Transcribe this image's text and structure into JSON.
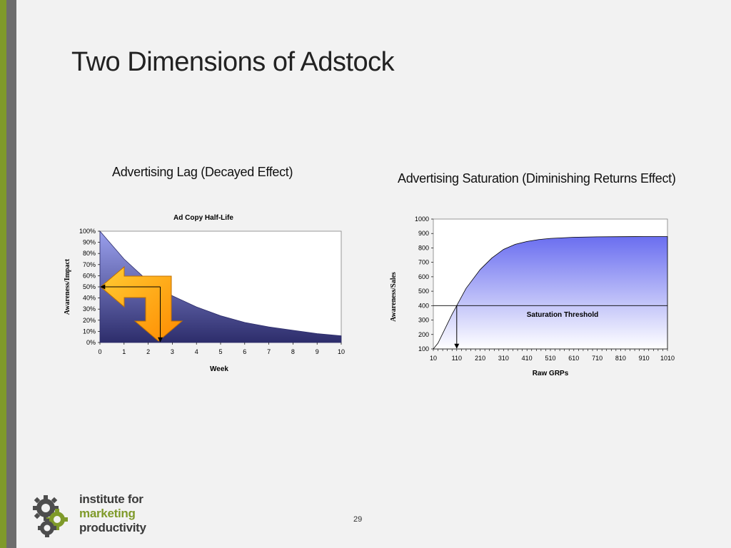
{
  "slide": {
    "title": "Two Dimensions of Adstock",
    "page_number": "29",
    "left_caption": "Advertising Lag (Decayed Effect)",
    "right_caption": "Advertising Saturation (Diminishing Returns Effect)"
  },
  "logo": {
    "line1": "institute for",
    "line2": "marketing",
    "line3": "productivity",
    "icon": "gears-icon",
    "colors": {
      "olive": "#7f9a2a",
      "gray": "#4d4d4d"
    }
  },
  "chart_data": [
    {
      "type": "area",
      "title": "Ad Copy Half-Life",
      "xlabel": "Week",
      "ylabel": "Awareness/Impact",
      "x": [
        0,
        1,
        2,
        3,
        4,
        5,
        6,
        7,
        8,
        9,
        10
      ],
      "values": [
        100,
        75,
        55,
        42,
        32,
        24,
        18,
        14,
        11,
        8,
        6
      ],
      "y_ticks": [
        "0%",
        "10%",
        "20%",
        "30%",
        "40%",
        "50%",
        "60%",
        "70%",
        "80%",
        "90%",
        "100%"
      ],
      "x_ticks": [
        "0",
        "1",
        "2",
        "3",
        "4",
        "5",
        "6",
        "7",
        "8",
        "9",
        "10"
      ],
      "ylim": [
        0,
        100
      ],
      "xlim": [
        0,
        10
      ],
      "half_life": {
        "x": 2.5,
        "y": 50
      },
      "fill_color": "#3c3d82",
      "annotation": "orange-bent-arrow"
    },
    {
      "type": "area",
      "title": "",
      "xlabel": "Raw GRPs",
      "ylabel": "Awareness/Sales",
      "x": [
        10,
        30,
        60,
        90,
        110,
        150,
        210,
        260,
        310,
        360,
        410,
        460,
        510,
        610,
        710,
        810,
        910,
        1010
      ],
      "values": [
        100,
        140,
        240,
        340,
        400,
        520,
        650,
        730,
        790,
        825,
        845,
        858,
        866,
        874,
        877,
        878,
        879,
        879
      ],
      "y_ticks": [
        "100",
        "200",
        "300",
        "400",
        "500",
        "600",
        "700",
        "800",
        "900",
        "1000"
      ],
      "x_ticks": [
        "10",
        "110",
        "210",
        "310",
        "410",
        "510",
        "610",
        "710",
        "810",
        "910",
        "1010"
      ],
      "ylim": [
        100,
        1000
      ],
      "xlim": [
        10,
        1010
      ],
      "threshold": {
        "label": "Saturation Threshold",
        "y": 400,
        "x": 110
      },
      "fill_color": "#6a6ef0",
      "threshold_label_color": "#008a3c"
    }
  ]
}
